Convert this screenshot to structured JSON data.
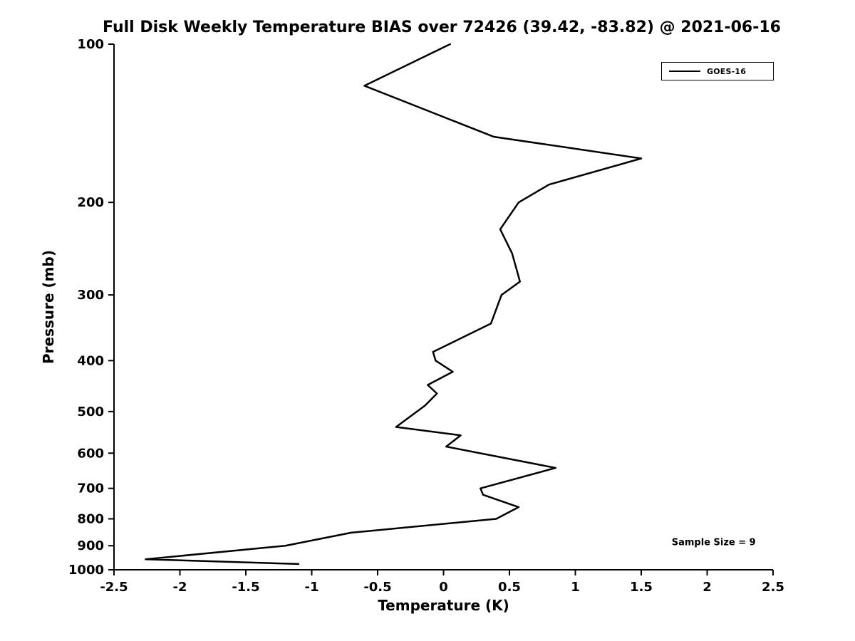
{
  "title": "Full Disk Weekly Temperature BIAS over 72426 (39.42, -83.82) @ 2021-06-16",
  "chart_data": {
    "type": "line",
    "title": "Full Disk Weekly Temperature BIAS over 72426 (39.42, -83.82) @ 2021-06-16",
    "xlabel": "Temperature (K)",
    "ylabel": "Pressure (mb)",
    "xlim": [
      -2.5,
      2.5
    ],
    "ylim": [
      1000,
      100
    ],
    "yscale": "log",
    "grid": false,
    "xticks": [
      -2.5,
      -2,
      -1.5,
      -1,
      -0.5,
      0,
      0.5,
      1,
      1.5,
      2,
      2.5
    ],
    "yticks": [
      100,
      200,
      300,
      400,
      500,
      600,
      700,
      800,
      900,
      1000
    ],
    "legend": {
      "position": "top-right",
      "entries": [
        {
          "label": "GOES-16",
          "color": "#000000"
        }
      ]
    },
    "annotations": [
      {
        "text": "Sample Size = 9",
        "x": 2.05,
        "y": 898
      }
    ],
    "series": [
      {
        "name": "GOES-16",
        "color": "#000000",
        "pressure": [
          100,
          120,
          150,
          165,
          185,
          200,
          225,
          250,
          283,
          300,
          340,
          385,
          400,
          420,
          445,
          462,
          487,
          535,
          555,
          583,
          640,
          700,
          720,
          760,
          800,
          850,
          900,
          955,
          975
        ],
        "bias": [
          0.05,
          -0.6,
          0.38,
          1.5,
          0.8,
          0.57,
          0.43,
          0.52,
          0.58,
          0.44,
          0.36,
          -0.08,
          -0.06,
          0.07,
          -0.12,
          -0.05,
          -0.14,
          -0.36,
          0.13,
          0.02,
          0.85,
          0.28,
          0.3,
          0.57,
          0.4,
          -0.7,
          -1.2,
          -2.26,
          -1.1
        ]
      }
    ]
  }
}
